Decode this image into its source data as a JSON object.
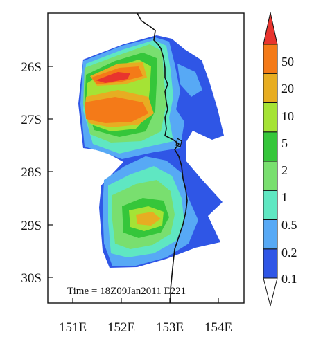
{
  "map": {
    "lat_labels": [
      "26S",
      "27S",
      "28S",
      "29S",
      "30S"
    ],
    "lon_labels": [
      "151E",
      "152E",
      "153E",
      "154E"
    ],
    "time_annotation": "Time = 18Z09Jan2011 E221"
  },
  "legend": {
    "levels": [
      "0.1",
      "0.2",
      "0.5",
      "1",
      "2",
      "5",
      "10",
      "20",
      "50"
    ],
    "colors": [
      "#ffffff",
      "#2f56e6",
      "#57a9f5",
      "#5fe7c2",
      "#79df6f",
      "#35c63a",
      "#a5e335",
      "#e7ad22",
      "#f47a18",
      "#e8342e"
    ]
  },
  "palette": {
    "blue": "#2f56e6",
    "light_blue": "#57a9f5",
    "aqua": "#5fe7c2",
    "light_green": "#79df6f",
    "green": "#35c63a",
    "yellow_green": "#a5e335",
    "gold": "#e7ad22",
    "orange": "#f47a18",
    "red": "#e8342e",
    "coastline": "#111111"
  }
}
